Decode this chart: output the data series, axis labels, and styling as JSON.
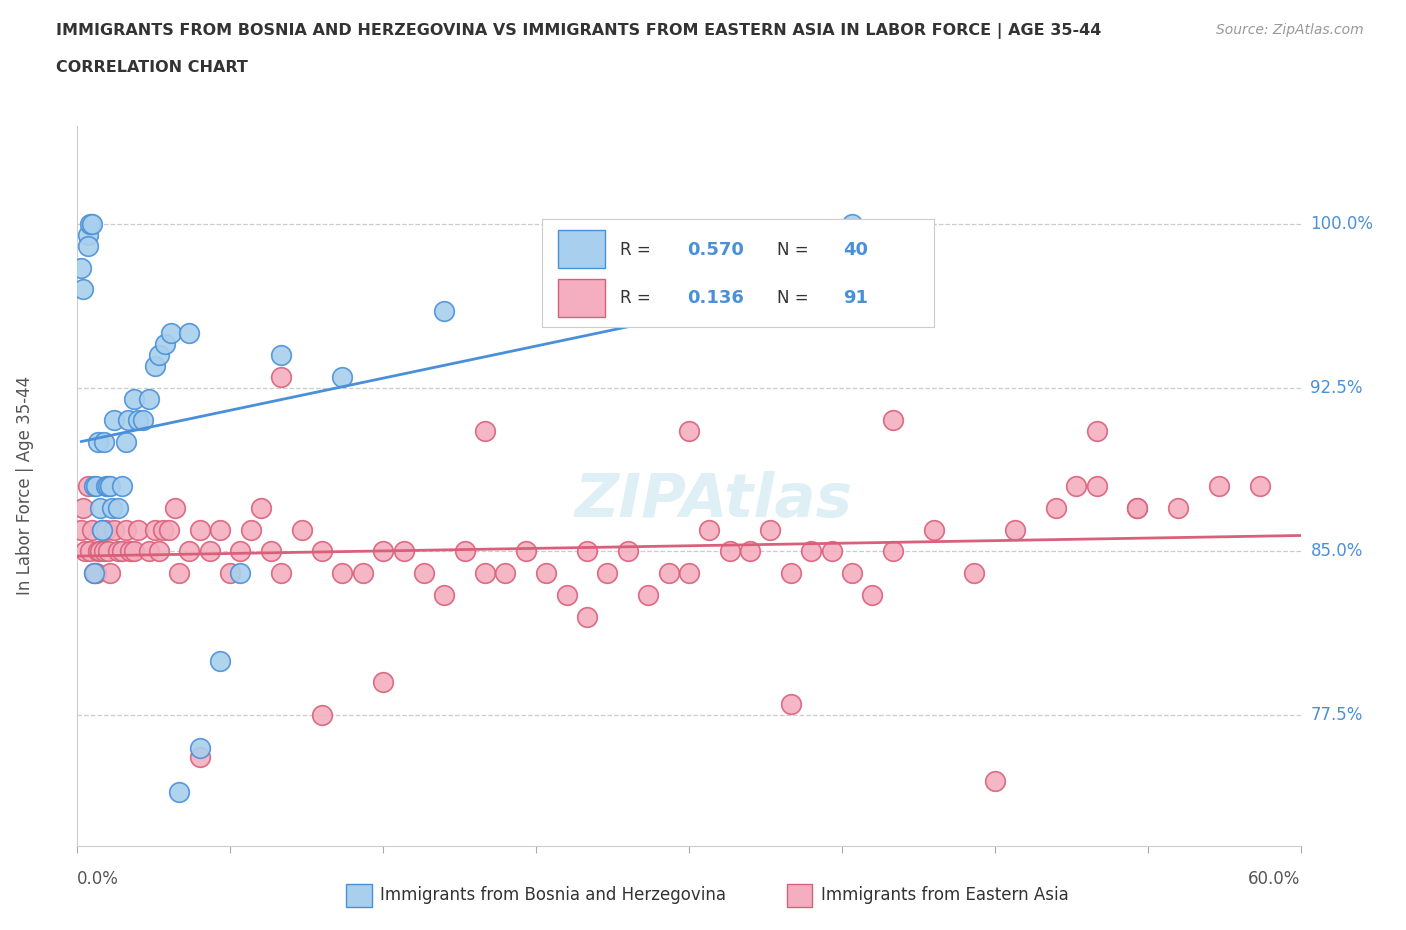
{
  "title_line1": "IMMIGRANTS FROM BOSNIA AND HERZEGOVINA VS IMMIGRANTS FROM EASTERN ASIA IN LABOR FORCE | AGE 35-44",
  "title_line2": "CORRELATION CHART",
  "source_text": "Source: ZipAtlas.com",
  "ylabel": "In Labor Force | Age 35-44",
  "ytick_vals": [
    0.775,
    0.85,
    0.925,
    1.0
  ],
  "xlim": [
    0.0,
    0.6
  ],
  "ylim": [
    0.715,
    1.045
  ],
  "legend_label1": "Immigrants from Bosnia and Herzegovina",
  "legend_label2": "Immigrants from Eastern Asia",
  "R1": "0.570",
  "N1": "40",
  "R2": "0.136",
  "N2": "91",
  "color1": "#A8CFED",
  "color2": "#F4AEBF",
  "line_color1": "#4A90D9",
  "line_color2": "#D9607A",
  "dot_edge_color1": "#4A90D9",
  "dot_edge_color2": "#D9607A",
  "watermark_text": "ZIPAtlas",
  "background_color": "#ffffff",
  "blue_x": [
    0.002,
    0.003,
    0.005,
    0.005,
    0.006,
    0.007,
    0.008,
    0.008,
    0.009,
    0.01,
    0.011,
    0.012,
    0.013,
    0.014,
    0.015,
    0.016,
    0.017,
    0.018,
    0.02,
    0.022,
    0.024,
    0.025,
    0.028,
    0.03,
    0.032,
    0.035,
    0.038,
    0.04,
    0.043,
    0.046,
    0.05,
    0.055,
    0.06,
    0.07,
    0.08,
    0.1,
    0.13,
    0.18,
    0.26,
    0.38
  ],
  "blue_y": [
    0.98,
    0.97,
    0.995,
    0.99,
    1.0,
    1.0,
    0.84,
    0.88,
    0.88,
    0.9,
    0.87,
    0.86,
    0.9,
    0.88,
    0.88,
    0.88,
    0.87,
    0.91,
    0.87,
    0.88,
    0.9,
    0.91,
    0.92,
    0.91,
    0.91,
    0.92,
    0.935,
    0.94,
    0.945,
    0.95,
    0.74,
    0.95,
    0.76,
    0.8,
    0.84,
    0.94,
    0.93,
    0.96,
    0.98,
    1.0
  ],
  "pink_x": [
    0.002,
    0.003,
    0.004,
    0.005,
    0.006,
    0.007,
    0.008,
    0.009,
    0.01,
    0.011,
    0.012,
    0.013,
    0.014,
    0.015,
    0.016,
    0.018,
    0.02,
    0.022,
    0.024,
    0.026,
    0.028,
    0.03,
    0.035,
    0.038,
    0.04,
    0.042,
    0.045,
    0.048,
    0.05,
    0.055,
    0.06,
    0.065,
    0.07,
    0.075,
    0.08,
    0.085,
    0.09,
    0.095,
    0.1,
    0.11,
    0.12,
    0.13,
    0.14,
    0.15,
    0.16,
    0.17,
    0.18,
    0.19,
    0.2,
    0.21,
    0.22,
    0.23,
    0.24,
    0.25,
    0.26,
    0.27,
    0.28,
    0.29,
    0.3,
    0.31,
    0.32,
    0.33,
    0.34,
    0.35,
    0.36,
    0.37,
    0.38,
    0.39,
    0.4,
    0.42,
    0.44,
    0.46,
    0.48,
    0.49,
    0.5,
    0.52,
    0.54,
    0.56,
    0.58,
    0.1,
    0.2,
    0.3,
    0.4,
    0.5,
    0.52,
    0.15,
    0.25,
    0.35,
    0.06,
    0.12,
    0.45
  ],
  "pink_y": [
    0.86,
    0.87,
    0.85,
    0.88,
    0.85,
    0.86,
    0.84,
    0.84,
    0.85,
    0.85,
    0.86,
    0.85,
    0.86,
    0.85,
    0.84,
    0.86,
    0.85,
    0.85,
    0.86,
    0.85,
    0.85,
    0.86,
    0.85,
    0.86,
    0.85,
    0.86,
    0.86,
    0.87,
    0.84,
    0.85,
    0.86,
    0.85,
    0.86,
    0.84,
    0.85,
    0.86,
    0.87,
    0.85,
    0.84,
    0.86,
    0.85,
    0.84,
    0.84,
    0.85,
    0.85,
    0.84,
    0.83,
    0.85,
    0.84,
    0.84,
    0.85,
    0.84,
    0.83,
    0.85,
    0.84,
    0.85,
    0.83,
    0.84,
    0.84,
    0.86,
    0.85,
    0.85,
    0.86,
    0.84,
    0.85,
    0.85,
    0.84,
    0.83,
    0.85,
    0.86,
    0.84,
    0.86,
    0.87,
    0.88,
    0.88,
    0.87,
    0.87,
    0.88,
    0.88,
    0.93,
    0.905,
    0.905,
    0.91,
    0.905,
    0.87,
    0.79,
    0.82,
    0.78,
    0.756,
    0.775,
    0.745
  ]
}
